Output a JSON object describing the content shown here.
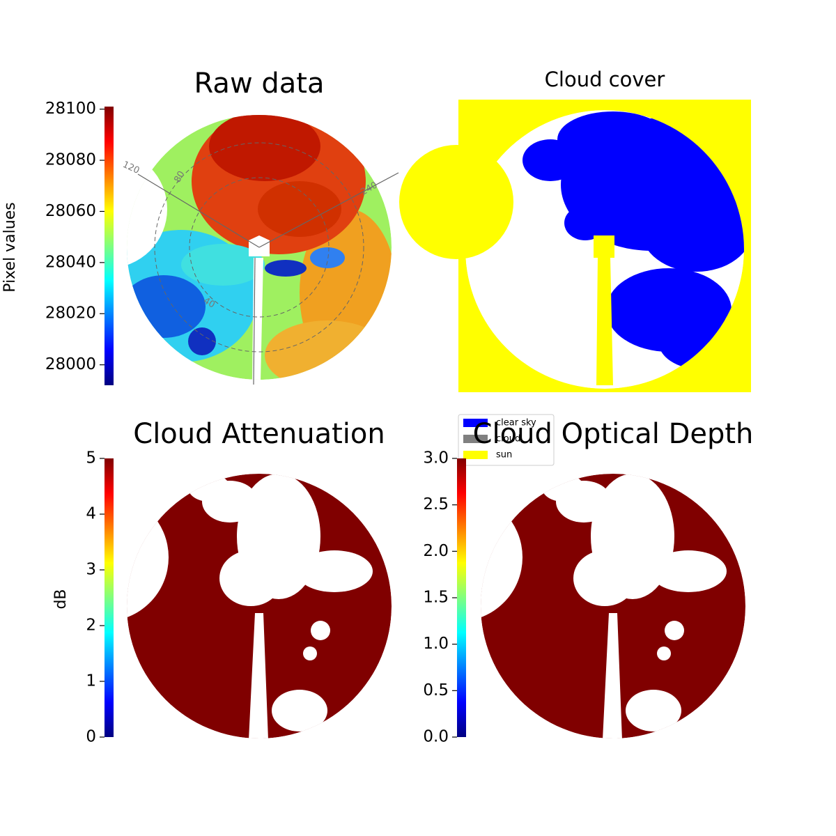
{
  "chart_data": [
    {
      "type": "image",
      "title": "Raw data",
      "colorbar": {
        "label": "Pixel values",
        "colormap": "jet",
        "ylim": [
          27992,
          28101
        ],
        "yticks": [
          28000,
          28020,
          28040,
          28060,
          28080,
          28100
        ]
      },
      "annotations": [
        "120",
        "80",
        "240",
        "40"
      ]
    },
    {
      "type": "image",
      "title": "Cloud cover",
      "series": [
        {
          "name": "clear sky",
          "color": "#0000ff"
        },
        {
          "name": "cloud",
          "color": "#808080"
        },
        {
          "name": "sun",
          "color": "#ffff00"
        }
      ]
    },
    {
      "type": "image",
      "title": "Cloud Attenuation",
      "colorbar": {
        "label": "dB",
        "colormap": "jet",
        "ylim": [
          0,
          5
        ],
        "yticks": [
          0,
          1,
          2,
          3,
          4,
          5
        ]
      }
    },
    {
      "type": "image",
      "title": "Cloud Optical Depth",
      "colorbar": {
        "colormap": "jet",
        "ylim": [
          0,
          3
        ],
        "yticks": [
          {
            "value": 0,
            "label": "0.0"
          },
          {
            "value": 0.5,
            "label": "0.5"
          },
          {
            "value": 1,
            "label": "1.0"
          },
          {
            "value": 1.5,
            "label": "1.5"
          },
          {
            "value": 2,
            "label": "2.0"
          },
          {
            "value": 2.5,
            "label": "2.5"
          },
          {
            "value": 3,
            "label": "3.0"
          }
        ]
      }
    }
  ]
}
